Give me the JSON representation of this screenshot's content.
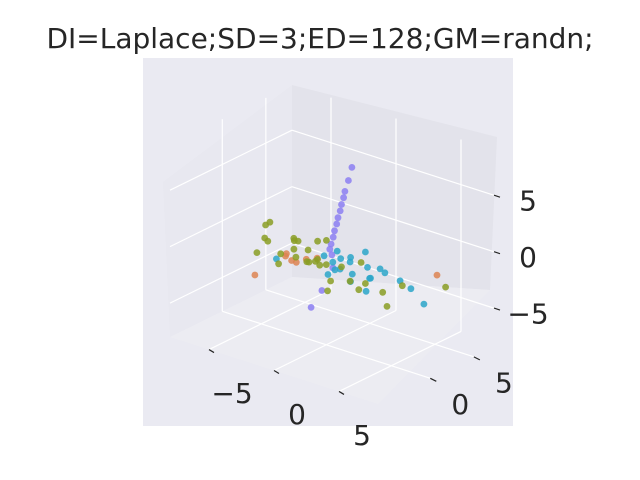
{
  "chart_data": {
    "type": "scatter",
    "projection": "3d",
    "title": "DI=Laplace;SD=3;ED=128;GM=randn;",
    "xlabel": "",
    "ylabel": "",
    "zlabel": "",
    "xlim": [
      -8,
      8
    ],
    "ylim": [
      -6,
      8
    ],
    "zlim": [
      -8,
      9
    ],
    "x_ticks": [
      -5,
      0,
      5
    ],
    "x_tick_labels": [
      "−5",
      "0",
      "5"
    ],
    "y_ticks": [
      0,
      5
    ],
    "y_tick_labels": [
      "0",
      "5"
    ],
    "z_ticks": [
      -5,
      0,
      5
    ],
    "z_tick_labels": [
      "−5",
      "0",
      "5"
    ],
    "grid": true,
    "legend": "none",
    "colors": {
      "background": "#eaeaf2",
      "pane_left": "#e8e8f0",
      "pane_right": "#e3e3eb",
      "pane_floor": "#ececf2",
      "grid": "#ffffff",
      "text": "#262626"
    },
    "series": [
      {
        "color": "#dd8452",
        "points": [
          [
            -6.5,
            1.5,
            -4.8
          ],
          [
            -1.5,
            -1.2,
            -0.8
          ],
          [
            -2.0,
            -1.0,
            -0.9
          ],
          [
            -2.8,
            -0.5,
            -1.0
          ],
          [
            -1.0,
            -0.8,
            -0.5
          ],
          [
            -3.2,
            0.2,
            -1.2
          ],
          [
            5.5,
            4.5,
            -1.5
          ],
          [
            -0.5,
            -0.3,
            -0.4
          ]
        ]
      },
      {
        "color": "#8c7ff2",
        "points": [
          [
            0.2,
            0.1,
            0.5
          ],
          [
            0.3,
            0.1,
            1.0
          ],
          [
            0.4,
            0.2,
            1.6
          ],
          [
            0.5,
            0.2,
            2.2
          ],
          [
            0.6,
            0.3,
            2.8
          ],
          [
            0.7,
            0.3,
            3.4
          ],
          [
            0.8,
            0.4,
            4.0
          ],
          [
            0.9,
            0.4,
            4.6
          ],
          [
            1.0,
            0.5,
            5.2
          ],
          [
            1.1,
            0.5,
            5.8
          ],
          [
            1.3,
            0.6,
            6.8
          ],
          [
            1.5,
            0.7,
            8.0
          ],
          [
            0.0,
            -0.5,
            -3.0
          ],
          [
            -0.5,
            -1.0,
            -4.5
          ],
          [
            0.5,
            0.0,
            -1.0
          ],
          [
            0.3,
            0.2,
            0.0
          ]
        ]
      },
      {
        "color": "#2ba6c9",
        "points": [
          [
            0.5,
            0.0,
            -0.5
          ],
          [
            1.0,
            -0.5,
            -0.8
          ],
          [
            1.5,
            0.5,
            -0.3
          ],
          [
            2.0,
            0.0,
            -1.0
          ],
          [
            2.5,
            1.0,
            -0.6
          ],
          [
            3.0,
            0.5,
            -1.2
          ],
          [
            3.5,
            1.5,
            -0.9
          ],
          [
            1.2,
            1.0,
            -0.2
          ],
          [
            0.8,
            -1.0,
            -1.1
          ],
          [
            2.2,
            -0.5,
            -1.4
          ],
          [
            2.8,
            2.0,
            -1.0
          ],
          [
            4.0,
            2.5,
            -1.8
          ],
          [
            4.5,
            3.0,
            -2.5
          ],
          [
            1.8,
            1.8,
            0.2
          ],
          [
            0.3,
            0.8,
            0.1
          ],
          [
            -0.5,
            0.5,
            -0.5
          ],
          [
            -3.5,
            -0.5,
            -1.5
          ],
          [
            3.2,
            -0.2,
            -2.0
          ],
          [
            5.5,
            3.0,
            -3.5
          ],
          [
            2.6,
            1.2,
            -1.6
          ],
          [
            1.6,
            -0.8,
            -0.4
          ],
          [
            0.1,
            1.5,
            -0.9
          ]
        ]
      },
      {
        "color": "#8a9e25",
        "points": [
          [
            -4.0,
            -1.0,
            1.5
          ],
          [
            -3.0,
            -2.0,
            2.5
          ],
          [
            -2.5,
            0.0,
            0.5
          ],
          [
            -4.5,
            0.0,
            -0.5
          ],
          [
            -5.0,
            -0.5,
            -1.5
          ],
          [
            -4.0,
            0.5,
            -2.5
          ],
          [
            -2.0,
            -0.5,
            -0.8
          ],
          [
            -1.5,
            0.0,
            -1.2
          ],
          [
            -1.0,
            0.5,
            -1.0
          ],
          [
            -0.5,
            -0.5,
            -0.6
          ],
          [
            0.0,
            0.0,
            -0.9
          ],
          [
            0.5,
            1.0,
            -1.3
          ],
          [
            1.0,
            -1.0,
            -1.6
          ],
          [
            1.5,
            0.5,
            -2.0
          ],
          [
            -2.0,
            1.0,
            -1.8
          ],
          [
            -3.5,
            1.5,
            -1.4
          ],
          [
            -2.5,
            -1.5,
            -0.3
          ],
          [
            -1.0,
            1.5,
            0.3
          ],
          [
            0.5,
            -1.5,
            -0.2
          ],
          [
            2.0,
            1.5,
            -2.4
          ],
          [
            3.0,
            2.0,
            -3.0
          ],
          [
            4.0,
            1.0,
            -3.5
          ],
          [
            -1.5,
            -1.0,
            1.0
          ],
          [
            -0.8,
            0.2,
            0.8
          ],
          [
            0.3,
            -0.3,
            -3.0
          ],
          [
            2.5,
            0.0,
            -2.2
          ],
          [
            3.5,
            3.5,
            -2.8
          ],
          [
            -3.0,
            0.8,
            -0.2
          ],
          [
            -4.2,
            -0.8,
            0.2
          ],
          [
            -1.8,
            0.6,
            -0.5
          ],
          [
            6.5,
            4.0,
            -2.0
          ],
          [
            1.2,
            2.2,
            -1.1
          ]
        ]
      }
    ]
  }
}
